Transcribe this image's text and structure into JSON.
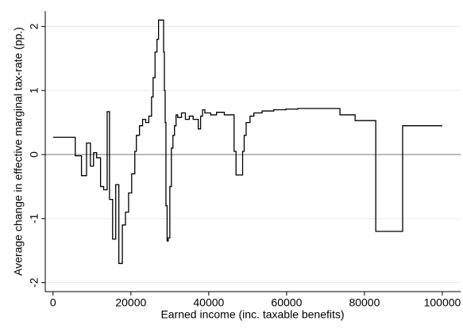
{
  "chart_data": {
    "type": "line",
    "step": "post",
    "x_label": "Earned income (inc. taxable benefits)",
    "y_label": "Average change in effective marginal tax-rate (pp.)",
    "x": [
      0,
      5700,
      7300,
      8600,
      9600,
      10400,
      11200,
      12200,
      13000,
      13900,
      14500,
      15300,
      16100,
      16900,
      17800,
      18600,
      19400,
      20200,
      21000,
      21400,
      22200,
      23000,
      23800,
      24600,
      25300,
      25700,
      26200,
      26700,
      27100,
      27600,
      28400,
      28600,
      28800,
      29000,
      29300,
      29600,
      30000,
      30400,
      30800,
      31200,
      31600,
      32000,
      33000,
      34000,
      35000,
      36000,
      37300,
      37900,
      38400,
      39000,
      40500,
      42000,
      44000,
      46500,
      47000,
      47500,
      48700,
      49100,
      49600,
      50600,
      51600,
      53700,
      56700,
      59800,
      62900,
      73700,
      77600,
      82900,
      89800,
      100000
    ],
    "values": [
      0.27,
      -0.02,
      -0.33,
      0.18,
      -0.18,
      0.03,
      -0.05,
      -0.5,
      -0.55,
      0.67,
      -0.7,
      -1.32,
      -0.47,
      -1.7,
      -1.1,
      -0.9,
      -0.6,
      -0.3,
      0.05,
      0.3,
      0.45,
      0.55,
      0.5,
      0.6,
      0.9,
      1.2,
      1.6,
      1.8,
      2.1,
      2.1,
      1.6,
      1.0,
      0.5,
      -0.8,
      -1.35,
      -1.3,
      -0.5,
      0.1,
      0.3,
      0.45,
      0.62,
      0.58,
      0.65,
      0.55,
      0.6,
      0.55,
      0.4,
      0.6,
      0.7,
      0.65,
      0.62,
      0.66,
      0.62,
      0.05,
      -0.32,
      -0.32,
      0.05,
      0.3,
      0.5,
      0.6,
      0.65,
      0.68,
      0.7,
      0.71,
      0.72,
      0.62,
      0.53,
      -1.2,
      0.45,
      0.45
    ],
    "color": "#000000",
    "xlim": [
      -2000,
      104700
    ],
    "ylim": [
      -2.14,
      2.24
    ],
    "xticks": [
      0,
      20000,
      40000,
      60000,
      80000,
      100000
    ],
    "yticks": [
      -2,
      -1,
      0,
      1,
      2
    ],
    "grid": true,
    "zero_line": true
  }
}
